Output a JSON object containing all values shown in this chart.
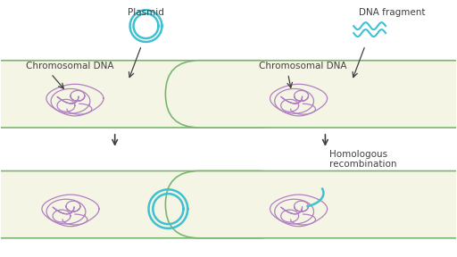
{
  "bg_color": "#ffffff",
  "cell_fill": "#f5f5e6",
  "cell_edge": "#7ab56e",
  "dna_color": "#b080c0",
  "plasmid_color": "#40c0d0",
  "text_color": "#404040",
  "arrow_color": "#404040",
  "labels": {
    "plasmid": "Plasmid",
    "dna_fragment": "DNA fragment",
    "chromosomal_dna_1": "Chromosomal DNA",
    "chromosomal_dna_2": "Chromosomal DNA",
    "homologous": "Homologous\nrecombination"
  }
}
